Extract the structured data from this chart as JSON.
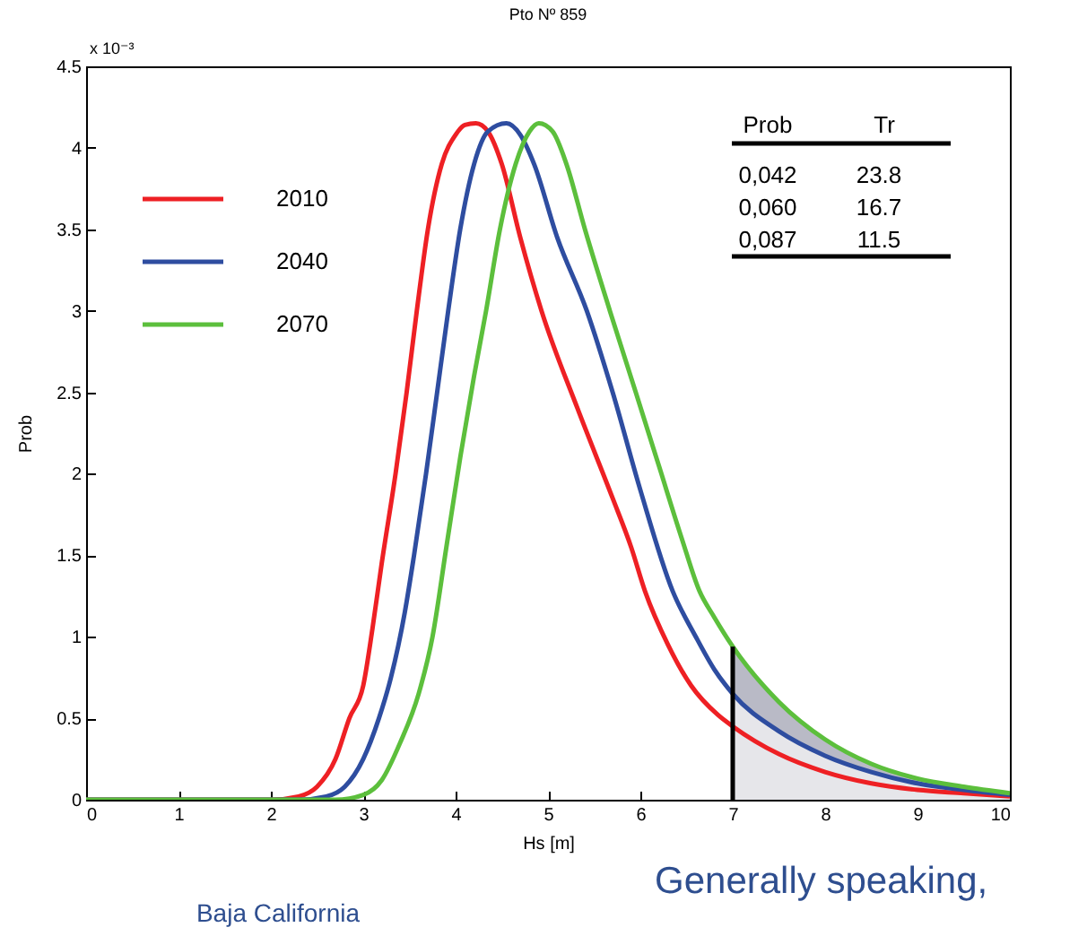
{
  "chart_data": {
    "type": "line",
    "title": "Pto Nº 859",
    "xlabel": "Hs [m]",
    "ylabel": "Prob",
    "xlim": [
      0,
      10
    ],
    "xticks": [
      0,
      1,
      2,
      3,
      4,
      5,
      6,
      7,
      8,
      9,
      10
    ],
    "ylim": [
      0,
      4.5
    ],
    "yticks": [
      0,
      0.5,
      1,
      1.5,
      2,
      2.5,
      3,
      3.5,
      4,
      4.5
    ],
    "legend": "top left",
    "line_style": "solid",
    "series": [
      {
        "type": "area",
        "color": "#e6e6ea",
        "x": [
          7,
          7.5,
          8,
          8.5,
          9,
          9.5,
          10
        ],
        "values": [
          0.65,
          0.42,
          0.27,
          0.17,
          0.1,
          0.06,
          0.03
        ]
      },
      {
        "name": "2010",
        "color": "#ee2024",
        "x": [
          0,
          2,
          2.3,
          2.5,
          2.7,
          2.85,
          3,
          3.1,
          3.2,
          3.35,
          3.47,
          3.58,
          3.7,
          3.85,
          4,
          4.1,
          4.22,
          4.35,
          4.5,
          4.7,
          4.93,
          5.32,
          5.7,
          5.9,
          6.05,
          6.3,
          6.55,
          6.84,
          7,
          7.5,
          8,
          8.5,
          9,
          9.5,
          10
        ],
        "values": [
          0,
          0,
          0.02,
          0.08,
          0.25,
          0.5,
          0.7,
          1.05,
          1.45,
          2,
          2.5,
          3,
          3.5,
          3.9,
          4.08,
          4.14,
          4.15,
          4.1,
          3.9,
          3.45,
          3,
          2.4,
          1.85,
          1.55,
          1.28,
          0.95,
          0.7,
          0.52,
          0.45,
          0.28,
          0.17,
          0.1,
          0.06,
          0.04,
          0.02
        ]
      },
      {
        "name": "2040",
        "color": "#2e4da0",
        "x": [
          0,
          2.3,
          2.6,
          2.8,
          3,
          3.17,
          3.3,
          3.45,
          3.55,
          3.68,
          3.8,
          3.92,
          4.05,
          4.2,
          4.35,
          4.55,
          4.7,
          4.85,
          5.1,
          5.42,
          5.7,
          6,
          6.35,
          6.6,
          6.8,
          7,
          7.5,
          8,
          8.5,
          9,
          9.5,
          10
        ],
        "values": [
          0,
          0,
          0.02,
          0.08,
          0.25,
          0.5,
          0.75,
          1.15,
          1.5,
          2,
          2.5,
          3,
          3.5,
          3.9,
          4.1,
          4.15,
          4.08,
          3.9,
          3.45,
          3,
          2.5,
          1.9,
          1.28,
          1,
          0.8,
          0.65,
          0.42,
          0.27,
          0.17,
          0.1,
          0.06,
          0.03
        ]
      },
      {
        "name": "2070",
        "color": "#5cbf3c",
        "x": [
          0,
          2.7,
          3,
          3.2,
          3.4,
          3.6,
          3.75,
          3.9,
          4.05,
          4.2,
          4.33,
          4.48,
          4.65,
          4.8,
          4.9,
          5.05,
          5.2,
          5.4,
          5.67,
          5.95,
          6.2,
          6.45,
          6.64,
          6.8,
          7,
          7.5,
          8,
          8.5,
          9,
          9.5,
          10
        ],
        "values": [
          0,
          0,
          0.03,
          0.12,
          0.35,
          0.65,
          1,
          1.55,
          2.1,
          2.6,
          3,
          3.5,
          3.9,
          4.1,
          4.15,
          4.1,
          3.9,
          3.5,
          3,
          2.5,
          2.05,
          1.6,
          1.28,
          1.12,
          0.94,
          0.6,
          0.37,
          0.22,
          0.13,
          0.08,
          0.04
        ],
        "lower": [
          null,
          null,
          null,
          null,
          null,
          null,
          null,
          null,
          null,
          null,
          null,
          null,
          null,
          null,
          null,
          null,
          null,
          null,
          null,
          null,
          null,
          null,
          null,
          null,
          0.65,
          0.42,
          0.27,
          0.17,
          0.1,
          0.06,
          0.03
        ],
        "upper": [
          null,
          null,
          null,
          null,
          null,
          null,
          null,
          null,
          null,
          null,
          null,
          null,
          null,
          null,
          null,
          null,
          null,
          null,
          null,
          null,
          null,
          null,
          null,
          null,
          0.94,
          0.6,
          0.37,
          0.22,
          0.13,
          0.08,
          0.04
        ]
      },
      {
        "type": "line",
        "color": "#000000",
        "x": [
          7,
          7
        ],
        "values": [
          0,
          0.94
        ]
      }
    ],
    "annotations": [
      "x 10⁻³",
      "Prob",
      "Tr",
      "0,042",
      "23.8",
      "0,060",
      "16.7",
      "0,087",
      "11.5",
      "Baja California",
      "Generally speaking,"
    ]
  }
}
